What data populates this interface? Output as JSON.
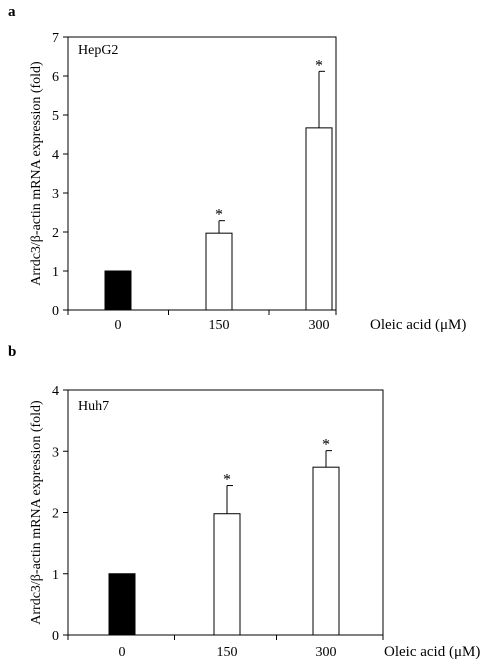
{
  "chart_data": [
    {
      "type": "bar",
      "panel_label": "a",
      "annotation": "HepG2",
      "categories": [
        "0",
        "150",
        "300"
      ],
      "values": [
        1.0,
        1.97,
        4.67
      ],
      "error_upper": [
        0.0,
        0.32,
        1.45
      ],
      "significance": [
        "",
        "*",
        "*"
      ],
      "bar_colors": [
        "#000000",
        "#ffffff",
        "#ffffff"
      ],
      "xlabel": "Oleic acid (μM)",
      "ylabel": "Arrdc3/β-actin mRNA expression (fold)",
      "ylim": [
        0,
        7
      ],
      "yticks": [
        "0",
        "1",
        "2",
        "3",
        "4",
        "5",
        "6",
        "7"
      ],
      "grid": false
    },
    {
      "type": "bar",
      "panel_label": "b",
      "annotation": "Huh7",
      "categories": [
        "0",
        "150",
        "300"
      ],
      "values": [
        1.0,
        1.98,
        2.74
      ],
      "error_upper": [
        0.0,
        0.46,
        0.27
      ],
      "significance": [
        "",
        "*",
        "*"
      ],
      "bar_colors": [
        "#000000",
        "#ffffff",
        "#ffffff"
      ],
      "xlabel": "Oleic acid (μM)",
      "ylabel": "Arrdc3/β-actin mRNA expression (fold)",
      "ylim": [
        0,
        4
      ],
      "yticks": [
        "0",
        "1",
        "2",
        "3",
        "4"
      ],
      "grid": false
    }
  ]
}
